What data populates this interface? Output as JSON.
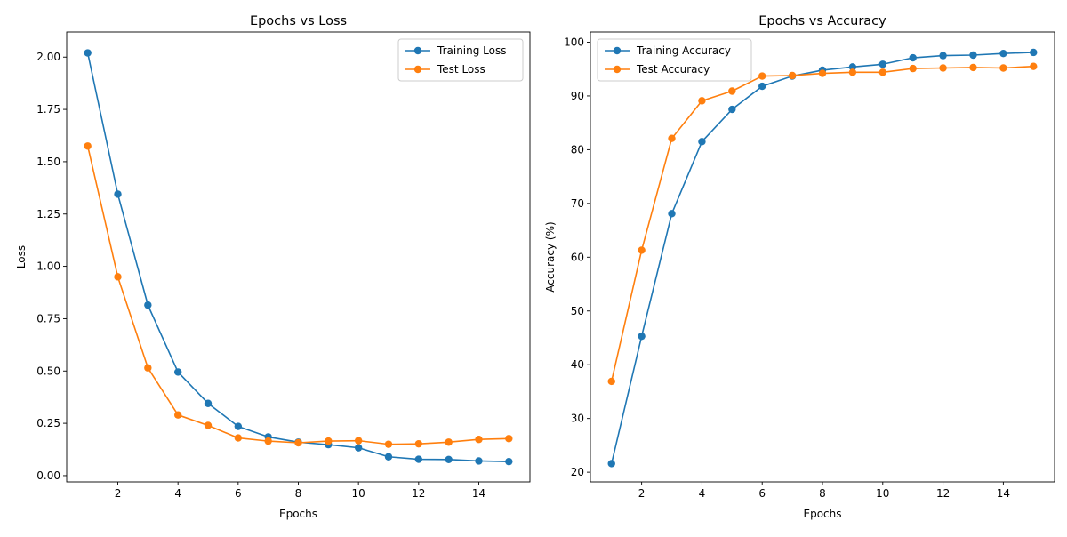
{
  "chart_data": [
    {
      "type": "line",
      "title": "Epochs vs Loss",
      "xlabel": "Epochs",
      "ylabel": "Loss",
      "x": [
        1,
        2,
        3,
        4,
        5,
        6,
        7,
        8,
        9,
        10,
        11,
        12,
        13,
        14,
        15
      ],
      "xlim": [
        0.3,
        15.7
      ],
      "ylim": [
        -0.03,
        2.12
      ],
      "xticks": [
        2,
        4,
        6,
        8,
        10,
        12,
        14
      ],
      "xtick_labels": [
        "2",
        "4",
        "6",
        "8",
        "10",
        "12",
        "14"
      ],
      "yticks": [
        0,
        0.25,
        0.5,
        0.75,
        1.0,
        1.25,
        1.5,
        1.75,
        2.0
      ],
      "ytick_labels": [
        "0.00",
        "0.25",
        "0.50",
        "0.75",
        "1.00",
        "1.25",
        "1.50",
        "1.75",
        "2.00"
      ],
      "grid": false,
      "legend_position": "top-right",
      "series": [
        {
          "name": "Training Loss",
          "color": "#1f77b4",
          "marker": "circle",
          "values": [
            2.02,
            1.345,
            0.815,
            0.495,
            0.345,
            0.235,
            0.185,
            0.16,
            0.148,
            0.133,
            0.09,
            0.078,
            0.077,
            0.07,
            0.067
          ]
        },
        {
          "name": "Test Loss",
          "color": "#ff7f0e",
          "marker": "circle",
          "values": [
            1.575,
            0.95,
            0.515,
            0.29,
            0.24,
            0.18,
            0.165,
            0.157,
            0.165,
            0.167,
            0.15,
            0.152,
            0.16,
            0.173,
            0.177
          ]
        }
      ]
    },
    {
      "type": "line",
      "title": "Epochs vs Accuracy",
      "xlabel": "Epochs",
      "ylabel": "Accuracy (%)",
      "x": [
        1,
        2,
        3,
        4,
        5,
        6,
        7,
        8,
        9,
        10,
        11,
        12,
        13,
        14,
        15
      ],
      "xlim": [
        0.3,
        15.7
      ],
      "ylim": [
        18.2,
        101.9
      ],
      "xticks": [
        2,
        4,
        6,
        8,
        10,
        12,
        14
      ],
      "xtick_labels": [
        "2",
        "4",
        "6",
        "8",
        "10",
        "12",
        "14"
      ],
      "yticks": [
        20,
        30,
        40,
        50,
        60,
        70,
        80,
        90,
        100
      ],
      "ytick_labels": [
        "20",
        "30",
        "40",
        "50",
        "60",
        "70",
        "80",
        "90",
        "100"
      ],
      "grid": false,
      "legend_position": "top-left",
      "series": [
        {
          "name": "Training Accuracy",
          "color": "#1f77b4",
          "marker": "circle",
          "values": [
            21.6,
            45.3,
            68.1,
            81.5,
            87.5,
            91.8,
            93.7,
            94.8,
            95.4,
            95.9,
            97.1,
            97.5,
            97.6,
            97.9,
            98.1
          ]
        },
        {
          "name": "Test Accuracy",
          "color": "#ff7f0e",
          "marker": "circle",
          "values": [
            36.9,
            61.3,
            82.1,
            89.1,
            90.9,
            93.7,
            93.8,
            94.2,
            94.4,
            94.4,
            95.1,
            95.2,
            95.3,
            95.2,
            95.5
          ]
        }
      ]
    }
  ]
}
